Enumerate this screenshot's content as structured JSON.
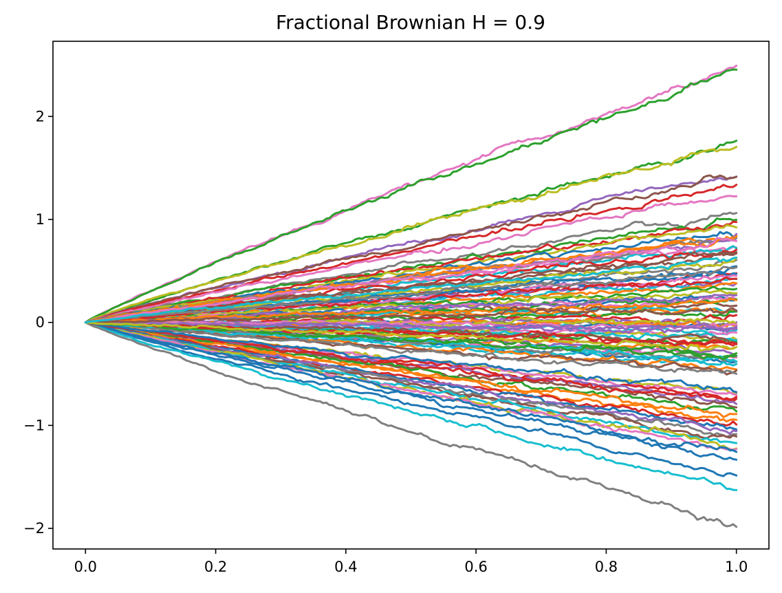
{
  "chart_data": {
    "type": "line",
    "title": "Fractional Brownian H = 0.9",
    "xlabel": "",
    "ylabel": "",
    "xlim": [
      -0.05,
      1.05
    ],
    "ylim": [
      -2.2,
      2.73
    ],
    "x_ticks": [
      0.0,
      0.2,
      0.4,
      0.6,
      0.8,
      1.0
    ],
    "x_tick_labels": [
      "0.0",
      "0.2",
      "0.4",
      "0.6",
      "0.8",
      "1.0"
    ],
    "y_ticks": [
      -2,
      -1,
      0,
      1,
      2
    ],
    "y_tick_labels": [
      "−2",
      "−1",
      "0",
      "1",
      "2"
    ],
    "grid": false,
    "legend": "none",
    "n_paths": 100,
    "n_steps": 200,
    "hurst": 0.9,
    "palette": [
      "#1f77b4",
      "#ff7f0e",
      "#2ca02c",
      "#d62728",
      "#9467bd",
      "#8c564b",
      "#e377c2",
      "#7f7f7f",
      "#bcbd22",
      "#17becf"
    ],
    "series_endpoints": [
      {
        "color": "#e377c2",
        "end": 2.48,
        "peak": 0.5
      },
      {
        "color": "#2ca02c",
        "end": 2.44,
        "peak": 0.3
      },
      {
        "color": "#2ca02c",
        "end": 1.75,
        "peak": 0.3
      },
      {
        "color": "#bcbd22",
        "end": 1.72,
        "peak": 0.3
      },
      {
        "color": "#9467bd",
        "end": 1.44,
        "peak": 0.3
      },
      {
        "color": "#8c564b",
        "end": 1.42,
        "peak": 0.3
      },
      {
        "color": "#d62728",
        "end": 1.32,
        "peak": 0.3
      },
      {
        "color": "#e377c2",
        "end": 1.24,
        "peak": 0.3
      },
      {
        "color": "#7f7f7f",
        "end": 1.06,
        "peak": 0.2
      },
      {
        "color": "#2ca02c",
        "end": 1.0,
        "peak": 0.2
      },
      {
        "color": "#d62728",
        "end": 0.97,
        "peak": 0.2
      },
      {
        "color": "#bcbd22",
        "end": 0.93,
        "peak": 0.2
      },
      {
        "color": "#1f77b4",
        "end": 0.88,
        "peak": 0.2
      },
      {
        "color": "#ff7f0e",
        "end": 0.84,
        "peak": 0.2
      },
      {
        "color": "#9467bd",
        "end": 0.8,
        "peak": 0.2
      },
      {
        "color": "#e377c2",
        "end": 0.76,
        "peak": 0.2
      },
      {
        "color": "#17becf",
        "end": 0.73,
        "peak": 0.2
      },
      {
        "color": "#d62728",
        "end": 0.7,
        "peak": 0.2
      },
      {
        "color": "#8c564b",
        "end": 0.66,
        "peak": 0.2
      },
      {
        "color": "#7f7f7f",
        "end": 0.57,
        "peak": 0.2
      },
      {
        "color": "#d62728",
        "end": 0.45,
        "peak": 0.15
      },
      {
        "color": "#9467bd",
        "end": 0.42,
        "peak": 0.15
      },
      {
        "color": "#17becf",
        "end": 0.39,
        "peak": 0.15
      },
      {
        "color": "#ff7f0e",
        "end": 0.36,
        "peak": 0.15
      },
      {
        "color": "#2ca02c",
        "end": 0.33,
        "peak": 0.15
      },
      {
        "color": "#bcbd22",
        "end": 0.3,
        "peak": 0.15
      },
      {
        "color": "#1f77b4",
        "end": 0.26,
        "peak": 0.15
      },
      {
        "color": "#e377c2",
        "end": 0.22,
        "peak": 0.15
      },
      {
        "color": "#8c564b",
        "end": 0.18,
        "peak": 0.15
      },
      {
        "color": "#17becf",
        "end": 0.15,
        "peak": 0.15
      },
      {
        "color": "#ff7f0e",
        "end": 0.12,
        "peak": 0.15
      },
      {
        "color": "#2ca02c",
        "end": 0.08,
        "peak": 0.15
      },
      {
        "color": "#d62728",
        "end": 0.05,
        "peak": 0.15
      },
      {
        "color": "#9467bd",
        "end": 0.02,
        "peak": 0.15
      },
      {
        "color": "#7f7f7f",
        "end": -0.02,
        "peak": 0.15
      },
      {
        "color": "#1f77b4",
        "end": -0.05,
        "peak": 0.15
      },
      {
        "color": "#17becf",
        "end": -0.09,
        "peak": 0.15
      },
      {
        "color": "#e377c2",
        "end": -0.12,
        "peak": 0.15
      },
      {
        "color": "#bcbd22",
        "end": -0.15,
        "peak": 0.15
      },
      {
        "color": "#2ca02c",
        "end": -0.19,
        "peak": 0.15
      },
      {
        "color": "#d62728",
        "end": -0.22,
        "peak": 0.15
      },
      {
        "color": "#ff7f0e",
        "end": -0.26,
        "peak": 0.15
      },
      {
        "color": "#9467bd",
        "end": -0.3,
        "peak": 0.15
      },
      {
        "color": "#e377c2",
        "end": -0.34,
        "peak": 0.15
      },
      {
        "color": "#1f77b4",
        "end": -0.38,
        "peak": 0.15
      },
      {
        "color": "#17becf",
        "end": -0.41,
        "peak": 0.15
      },
      {
        "color": "#ff7f0e",
        "end": -0.44,
        "peak": 0.15
      },
      {
        "color": "#8c564b",
        "end": -0.47,
        "peak": 0.15
      },
      {
        "color": "#7f7f7f",
        "end": -0.5,
        "peak": 0.15
      },
      {
        "color": "#bcbd22",
        "end": -0.68,
        "peak": 0.15
      },
      {
        "color": "#e377c2",
        "end": -0.7,
        "peak": 0.2
      },
      {
        "color": "#d62728",
        "end": -0.74,
        "peak": 0.2
      },
      {
        "color": "#9467bd",
        "end": -0.78,
        "peak": 0.2
      },
      {
        "color": "#8c564b",
        "end": -0.82,
        "peak": 0.2
      },
      {
        "color": "#2ca02c",
        "end": -0.85,
        "peak": 0.2
      },
      {
        "color": "#ff7f0e",
        "end": -0.9,
        "peak": 0.2
      },
      {
        "color": "#ff7f0e",
        "end": -0.95,
        "peak": 0.2
      },
      {
        "color": "#d62728",
        "end": -1.0,
        "peak": 0.2
      },
      {
        "color": "#1f77b4",
        "end": -1.03,
        "peak": 0.2
      },
      {
        "color": "#9467bd",
        "end": -1.06,
        "peak": 0.2
      },
      {
        "color": "#7f7f7f",
        "end": -1.1,
        "peak": 0.2
      },
      {
        "color": "#8c564b",
        "end": -1.13,
        "peak": 0.2
      },
      {
        "color": "#17becf",
        "end": -1.17,
        "peak": 0.2
      },
      {
        "color": "#bcbd22",
        "end": -1.2,
        "peak": 0.2
      },
      {
        "color": "#e377c2",
        "end": -1.23,
        "peak": 0.2
      },
      {
        "color": "#1f77b4",
        "end": -1.27,
        "peak": 0.3
      },
      {
        "color": "#1f77b4",
        "end": -1.33,
        "peak": 0.3
      },
      {
        "color": "#1f77b4",
        "end": -1.47,
        "peak": 0.3
      },
      {
        "color": "#17becf",
        "end": -1.62,
        "peak": 0.3
      },
      {
        "color": "#7f7f7f",
        "end": -1.96,
        "peak": 0.3
      }
    ]
  }
}
